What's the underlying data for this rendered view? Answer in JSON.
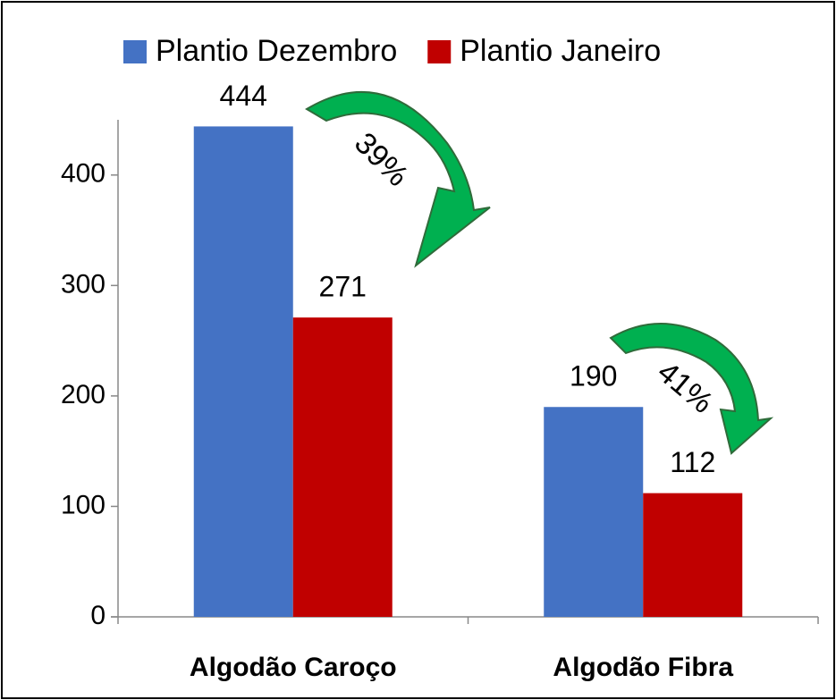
{
  "chart_data": {
    "type": "bar",
    "categories": [
      "Algodão Caroço",
      "Algodão Fibra"
    ],
    "series": [
      {
        "name": "Plantio Dezembro",
        "color": "#4472c4",
        "values": [
          444,
          190
        ]
      },
      {
        "name": "Plantio Janeiro",
        "color": "#c00000",
        "values": [
          271,
          112
        ]
      }
    ],
    "ylim": [
      0,
      450
    ],
    "yticks": [
      0,
      100,
      200,
      300,
      400
    ],
    "legend": "top",
    "annotations": [
      "39%",
      "41%"
    ]
  }
}
